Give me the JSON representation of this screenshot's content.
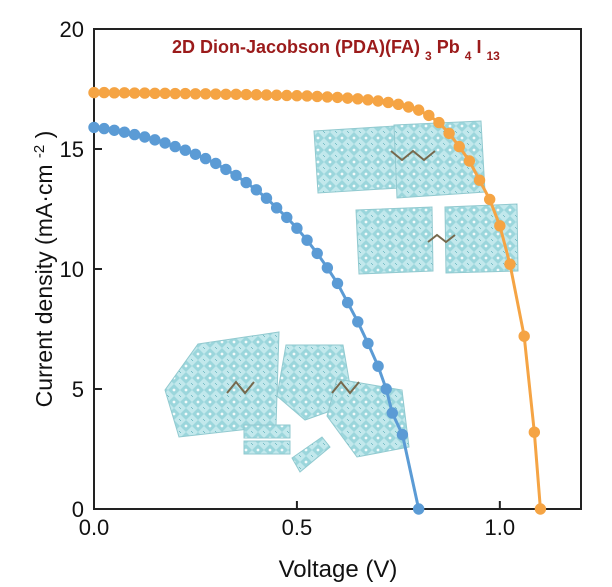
{
  "chart_data": {
    "type": "line",
    "title": {
      "prefix": "2D Dion-Jacobson (PDA)(FA)",
      "sub1": "3",
      "mid": "Pb",
      "sub2": "4",
      "tail": "I",
      "sub3": "13"
    },
    "xlabel": "Voltage (V)",
    "ylabel": {
      "main": "Current density (mA·cm",
      "sup": "-2",
      "close": ")"
    },
    "xlim": [
      0.0,
      1.2
    ],
    "ylim": [
      0,
      20
    ],
    "xticks": [
      0.0,
      0.5,
      1.0
    ],
    "xtick_labels": [
      "0.0",
      "0.5",
      "1.0"
    ],
    "yticks": [
      0,
      5,
      10,
      15,
      20
    ],
    "ytick_labels": [
      "0",
      "5",
      "10",
      "15",
      "20"
    ],
    "series": [
      {
        "name": "orange",
        "color": "#f5a444",
        "points": [
          [
            0.0,
            17.35
          ],
          [
            0.025,
            17.35
          ],
          [
            0.05,
            17.34
          ],
          [
            0.075,
            17.34
          ],
          [
            0.1,
            17.33
          ],
          [
            0.125,
            17.33
          ],
          [
            0.15,
            17.32
          ],
          [
            0.175,
            17.32
          ],
          [
            0.2,
            17.31
          ],
          [
            0.225,
            17.31
          ],
          [
            0.25,
            17.3
          ],
          [
            0.275,
            17.3
          ],
          [
            0.3,
            17.29
          ],
          [
            0.325,
            17.28
          ],
          [
            0.35,
            17.28
          ],
          [
            0.375,
            17.27
          ],
          [
            0.4,
            17.26
          ],
          [
            0.425,
            17.25
          ],
          [
            0.45,
            17.24
          ],
          [
            0.475,
            17.23
          ],
          [
            0.5,
            17.22
          ],
          [
            0.525,
            17.21
          ],
          [
            0.55,
            17.19
          ],
          [
            0.575,
            17.17
          ],
          [
            0.6,
            17.15
          ],
          [
            0.625,
            17.12
          ],
          [
            0.65,
            17.09
          ],
          [
            0.675,
            17.05
          ],
          [
            0.7,
            17.0
          ],
          [
            0.725,
            16.94
          ],
          [
            0.75,
            16.86
          ],
          [
            0.775,
            16.75
          ],
          [
            0.8,
            16.62
          ],
          [
            0.825,
            16.4
          ],
          [
            0.85,
            16.1
          ],
          [
            0.875,
            15.65
          ],
          [
            0.9,
            15.1
          ],
          [
            0.925,
            14.5
          ],
          [
            0.95,
            13.7
          ],
          [
            0.975,
            12.9
          ],
          [
            1.0,
            11.8
          ],
          [
            1.025,
            10.2
          ],
          [
            1.06,
            7.2
          ],
          [
            1.085,
            3.2
          ],
          [
            1.1,
            0.0
          ]
        ]
      },
      {
        "name": "blue",
        "color": "#5b9bd5",
        "points": [
          [
            0.0,
            15.9
          ],
          [
            0.025,
            15.85
          ],
          [
            0.05,
            15.78
          ],
          [
            0.075,
            15.7
          ],
          [
            0.1,
            15.6
          ],
          [
            0.125,
            15.5
          ],
          [
            0.15,
            15.38
          ],
          [
            0.175,
            15.25
          ],
          [
            0.2,
            15.1
          ],
          [
            0.225,
            14.95
          ],
          [
            0.25,
            14.78
          ],
          [
            0.275,
            14.6
          ],
          [
            0.3,
            14.4
          ],
          [
            0.325,
            14.15
          ],
          [
            0.35,
            13.9
          ],
          [
            0.375,
            13.6
          ],
          [
            0.4,
            13.3
          ],
          [
            0.425,
            12.95
          ],
          [
            0.45,
            12.55
          ],
          [
            0.475,
            12.15
          ],
          [
            0.5,
            11.7
          ],
          [
            0.525,
            11.2
          ],
          [
            0.55,
            10.65
          ],
          [
            0.575,
            10.05
          ],
          [
            0.6,
            9.4
          ],
          [
            0.625,
            8.6
          ],
          [
            0.65,
            7.8
          ],
          [
            0.675,
            6.9
          ],
          [
            0.7,
            5.95
          ],
          [
            0.72,
            5.0
          ],
          [
            0.735,
            4.0
          ],
          [
            0.76,
            3.1
          ],
          [
            0.8,
            0.0
          ]
        ]
      }
    ]
  }
}
